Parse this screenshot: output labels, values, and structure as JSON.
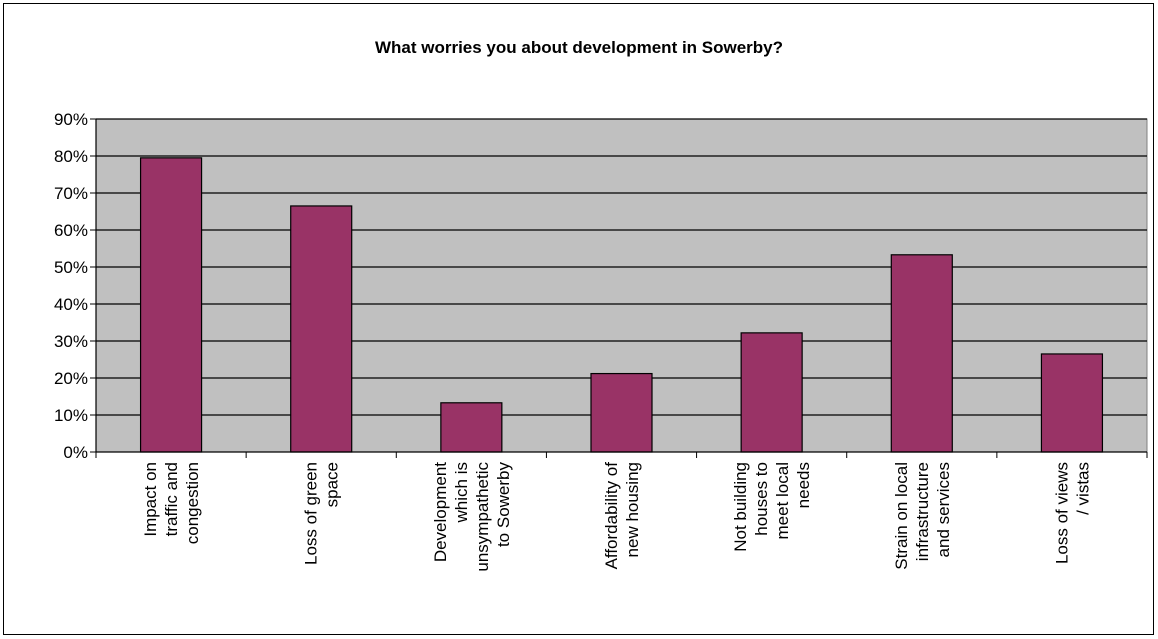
{
  "chart_data": {
    "type": "bar",
    "title": "What worries you about development in Sowerby?",
    "xlabel": "",
    "ylabel": "",
    "ylim": [
      0,
      90
    ],
    "ytick_step": 10,
    "y_tick_labels": [
      "0%",
      "10%",
      "20%",
      "30%",
      "40%",
      "50%",
      "60%",
      "70%",
      "80%",
      "90%"
    ],
    "grid": true,
    "legend": "none",
    "categories": [
      [
        "Impact on",
        "traffic and",
        "congestion"
      ],
      [
        "Loss of green",
        "space"
      ],
      [
        "Development",
        "which is",
        "unsympathetic",
        "to Sowerby"
      ],
      [
        "Affordability of",
        "new housing"
      ],
      [
        "Not building",
        "houses to",
        "meet local",
        "needs"
      ],
      [
        "Strain on local",
        "infrastructure",
        "and services"
      ],
      [
        "Loss of views",
        "/ vistas"
      ]
    ],
    "values": [
      79.5,
      66.5,
      13.3,
      21.2,
      32.2,
      53.3,
      26.5
    ],
    "colors": {
      "bar": "#993366",
      "plot_bg": "#c0c0c0",
      "grid": "#000000"
    }
  }
}
